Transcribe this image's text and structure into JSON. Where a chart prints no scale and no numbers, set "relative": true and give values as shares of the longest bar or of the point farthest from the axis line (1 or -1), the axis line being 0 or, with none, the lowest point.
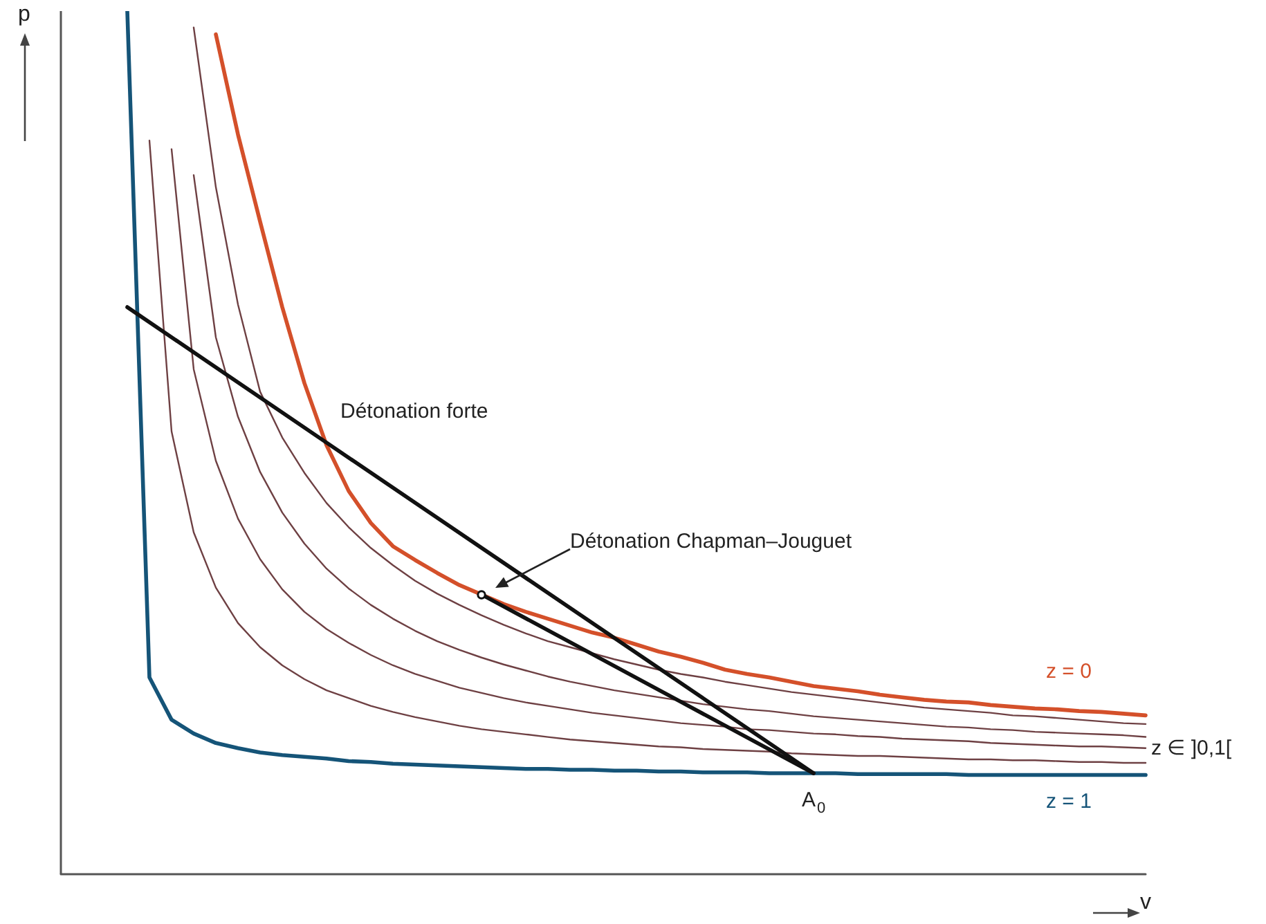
{
  "chart_data": {
    "type": "line",
    "relative": true,
    "xlabel": "v",
    "ylabel": "p",
    "legend": false,
    "grid": false,
    "categories": [
      null,
      null,
      null,
      null,
      null,
      null,
      null,
      null,
      null,
      null,
      null,
      null,
      null,
      null,
      null,
      null,
      null,
      null,
      null,
      null,
      null,
      null,
      null,
      null,
      null,
      null,
      null,
      null,
      null,
      null,
      null,
      null,
      null,
      null,
      null,
      null,
      null,
      null,
      null,
      null,
      null,
      null,
      null,
      null,
      null,
      null,
      null,
      null,
      null,
      null
    ],
    "annotations": [
      "Détonation forte",
      "Détonation Chapman–Jouguet",
      "A$_{0}$",
      "z ∈ ]0,1["
    ],
    "series": [
      {
        "name": "z = 1",
        "color": "#155478",
        "values": [
          null,
          null,
          null,
          1.0,
          0.228,
          0.179,
          0.163,
          0.152,
          0.146,
          0.141,
          0.138,
          0.136,
          0.134,
          0.131,
          0.13,
          0.128,
          0.127,
          0.126,
          0.125,
          0.124,
          0.123,
          0.122,
          0.122,
          0.121,
          0.121,
          0.12,
          0.12,
          0.119,
          0.119,
          0.118,
          0.118,
          0.118,
          0.117,
          0.117,
          0.117,
          0.117,
          0.116,
          0.116,
          0.116,
          0.116,
          0.116,
          0.115,
          0.115,
          0.115,
          0.115,
          0.115,
          0.115,
          0.115,
          0.115,
          0.115
        ]
      },
      {
        "color": "#6e4043",
        "values": [
          null,
          null,
          null,
          null,
          0.85,
          0.513,
          0.396,
          0.332,
          0.291,
          0.263,
          0.242,
          0.226,
          0.213,
          0.204,
          0.195,
          0.188,
          0.182,
          0.177,
          0.172,
          0.168,
          0.165,
          0.162,
          0.159,
          0.156,
          0.154,
          0.152,
          0.15,
          0.148,
          0.147,
          0.145,
          0.144,
          0.143,
          0.142,
          0.14,
          0.139,
          0.138,
          0.137,
          0.137,
          0.136,
          0.135,
          0.134,
          0.133,
          0.133,
          0.132,
          0.132,
          0.131,
          0.13,
          0.13,
          0.129,
          0.129
        ]
      },
      {
        "color": "#6e4043",
        "values": [
          null,
          null,
          null,
          null,
          null,
          0.84,
          0.585,
          0.479,
          0.412,
          0.365,
          0.33,
          0.304,
          0.284,
          0.268,
          0.254,
          0.242,
          0.232,
          0.224,
          0.216,
          0.21,
          0.204,
          0.199,
          0.195,
          0.191,
          0.187,
          0.184,
          0.181,
          0.178,
          0.175,
          0.173,
          0.171,
          0.168,
          0.167,
          0.165,
          0.163,
          0.162,
          0.16,
          0.159,
          0.157,
          0.156,
          0.155,
          0.154,
          0.152,
          0.151,
          0.15,
          0.149,
          0.148,
          0.148,
          0.147,
          0.146
        ]
      },
      {
        "color": "#6e4043",
        "values": [
          null,
          null,
          null,
          null,
          null,
          null,
          0.81,
          0.622,
          0.53,
          0.466,
          0.419,
          0.383,
          0.354,
          0.331,
          0.312,
          0.296,
          0.282,
          0.27,
          0.26,
          0.251,
          0.243,
          0.236,
          0.229,
          0.223,
          0.218,
          0.213,
          0.209,
          0.205,
          0.201,
          0.197,
          0.194,
          0.191,
          0.189,
          0.186,
          0.183,
          0.181,
          0.179,
          0.177,
          0.175,
          0.173,
          0.171,
          0.17,
          0.168,
          0.167,
          0.165,
          0.164,
          0.163,
          0.162,
          0.161,
          0.159
        ]
      },
      {
        "color": "#6e4043",
        "values": [
          null,
          null,
          null,
          null,
          null,
          null,
          0.981,
          0.796,
          0.66,
          0.559,
          0.506,
          0.465,
          0.43,
          0.402,
          0.378,
          0.358,
          0.34,
          0.325,
          0.312,
          0.3,
          0.289,
          0.279,
          0.27,
          0.263,
          0.256,
          0.249,
          0.243,
          0.237,
          0.232,
          0.228,
          0.223,
          0.219,
          0.215,
          0.211,
          0.208,
          0.205,
          0.202,
          0.199,
          0.196,
          0.193,
          0.191,
          0.189,
          0.187,
          0.184,
          0.183,
          0.181,
          0.179,
          0.177,
          0.175,
          0.174
        ]
      },
      {
        "name": "z = 0",
        "color": "#d4502a",
        "values": [
          null,
          null,
          null,
          null,
          null,
          null,
          null,
          0.973,
          0.857,
          0.756,
          0.657,
          0.569,
          0.497,
          0.444,
          0.407,
          0.38,
          0.364,
          0.349,
          0.335,
          0.324,
          0.313,
          0.304,
          0.296,
          0.288,
          0.28,
          0.274,
          0.266,
          0.258,
          0.252,
          0.245,
          0.237,
          0.232,
          0.228,
          0.223,
          0.218,
          0.215,
          0.212,
          0.208,
          0.205,
          0.202,
          0.2,
          0.199,
          0.196,
          0.194,
          0.192,
          0.191,
          0.189,
          0.188,
          0.186,
          0.184
        ]
      },
      {
        "color": "#111111",
        "values": [
          null,
          null,
          null,
          0.657,
          null,
          null,
          null,
          null,
          null,
          null,
          null,
          null,
          0.5,
          null,
          null,
          null,
          null,
          null,
          null,
          null,
          null,
          null,
          null,
          null,
          null,
          null,
          null,
          null,
          null,
          null,
          null,
          null,
          null,
          null,
          0.117,
          null,
          null,
          null,
          null,
          null,
          null,
          null,
          null,
          null,
          null,
          null,
          null,
          null,
          null,
          null
        ]
      },
      {
        "color": "#111111",
        "values": [
          null,
          null,
          null,
          null,
          null,
          null,
          null,
          null,
          null,
          null,
          null,
          null,
          null,
          null,
          null,
          null,
          null,
          null,
          null,
          0.324,
          null,
          null,
          null,
          null,
          null,
          null,
          null,
          null,
          null,
          null,
          null,
          null,
          null,
          null,
          0.117,
          null,
          null,
          null,
          null,
          null,
          null,
          null,
          null,
          null,
          null,
          null,
          null,
          null,
          null,
          null
        ]
      }
    ]
  }
}
